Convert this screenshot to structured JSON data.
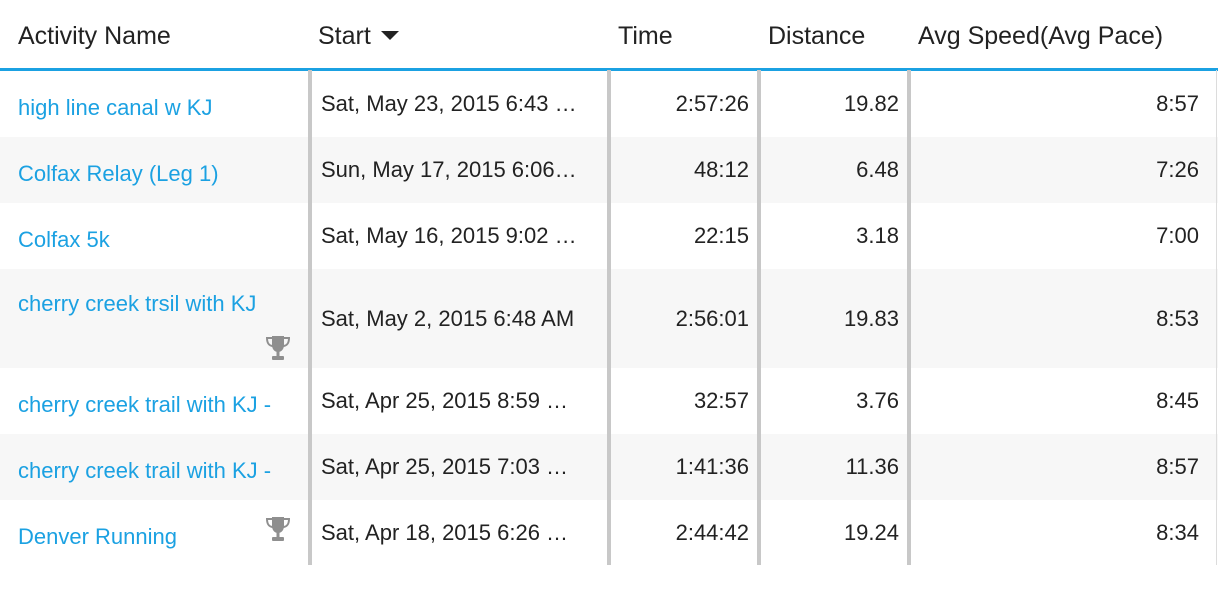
{
  "colors": {
    "accent": "#1ba1e2",
    "text": "#222222",
    "row_alt": "#f7f7f7",
    "divider": "#c8c8c8",
    "trophy": "#8f8f8f"
  },
  "columns": {
    "activity_name": "Activity Name",
    "start": "Start",
    "time": "Time",
    "distance": "Distance",
    "avg_speed": "Avg Speed(Avg Pace)"
  },
  "sort": {
    "column": "start",
    "direction": "descending",
    "icon": "caret-down-icon"
  },
  "rows": [
    {
      "name": "high line canal w KJ",
      "start": "Sat, May 23, 2015 6:43 …",
      "time": "2:57:26",
      "distance": "19.82",
      "pace": "8:57",
      "trophy": false
    },
    {
      "name": "Colfax Relay (Leg 1)",
      "start": "Sun, May 17, 2015 6:06…",
      "time": "48:12",
      "distance": "6.48",
      "pace": "7:26",
      "trophy": false
    },
    {
      "name": "Colfax 5k",
      "start": "Sat, May 16, 2015 9:02 …",
      "time": "22:15",
      "distance": "3.18",
      "pace": "7:00",
      "trophy": false
    },
    {
      "name": "cherry creek trsil with KJ",
      "start": "Sat, May 2, 2015 6:48 AM",
      "time": "2:56:01",
      "distance": "19.83",
      "pace": "8:53",
      "trophy": true,
      "trophy_icon": "trophy-icon"
    },
    {
      "name": "cherry creek trail with KJ -",
      "start": "Sat, Apr 25, 2015 8:59 …",
      "time": "32:57",
      "distance": "3.76",
      "pace": "8:45",
      "trophy": false
    },
    {
      "name": "cherry creek trail with KJ -",
      "start": "Sat, Apr 25, 2015 7:03 …",
      "time": "1:41:36",
      "distance": "11.36",
      "pace": "8:57",
      "trophy": false
    },
    {
      "name": "Denver Running",
      "start": "Sat, Apr 18, 2015 6:26 …",
      "time": "2:44:42",
      "distance": "19.24",
      "pace": "8:34",
      "trophy": true,
      "trophy_icon": "trophy-icon"
    }
  ]
}
